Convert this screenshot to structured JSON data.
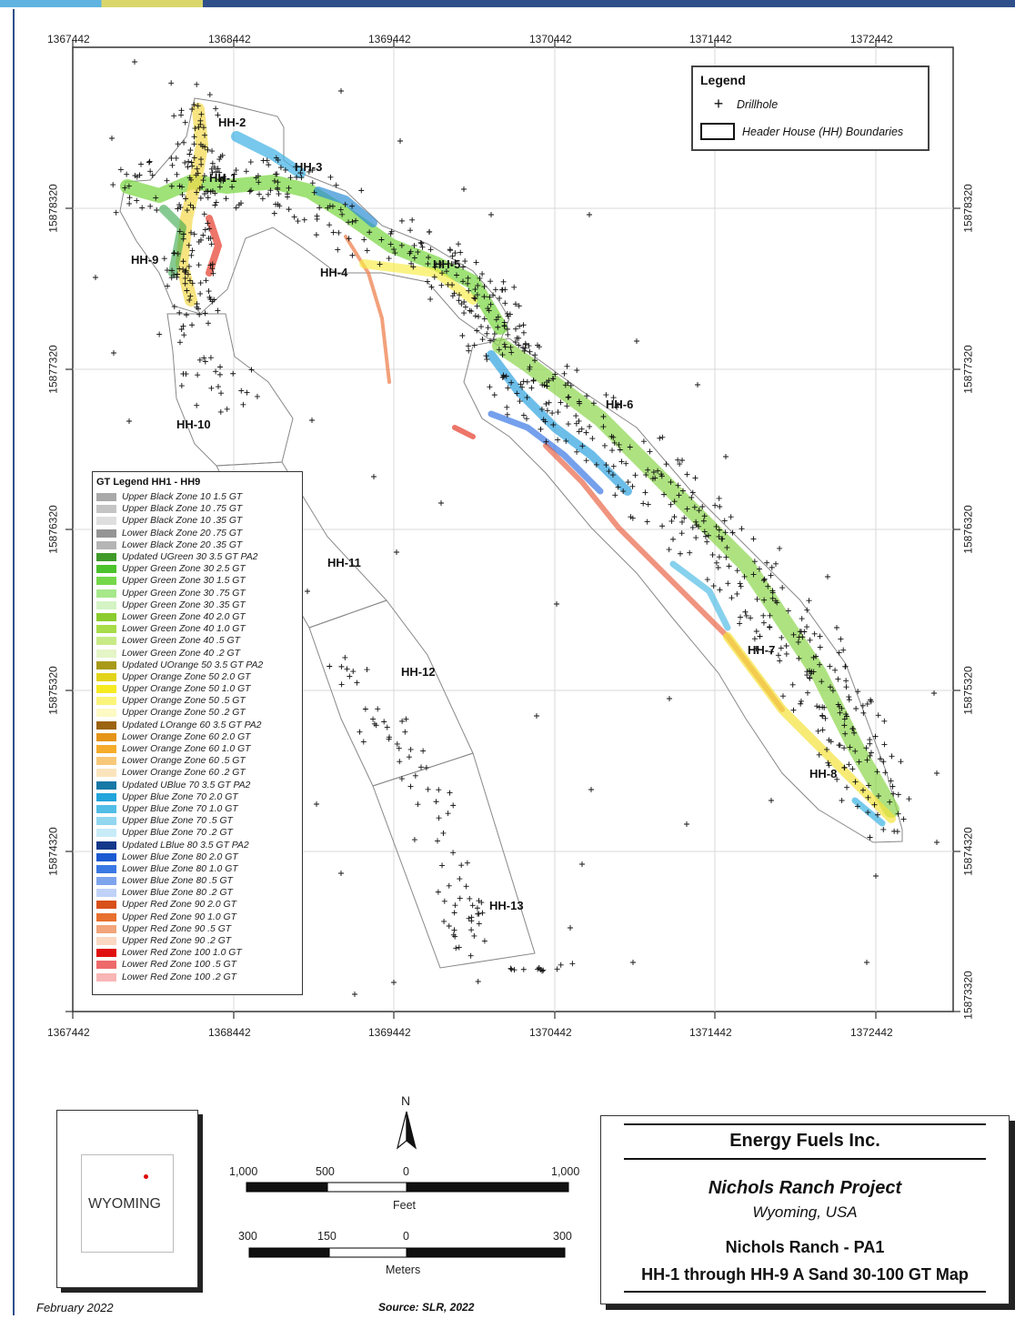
{
  "axis": {
    "x_ticks": [
      "1367442",
      "1368442",
      "1369442",
      "1370442",
      "1371442",
      "1372442"
    ],
    "y_ticks": [
      "15878320",
      "15877320",
      "15876320",
      "15875320",
      "15874320",
      "15873320"
    ]
  },
  "map_legend": {
    "title": "Legend",
    "drillhole_symbol": "+",
    "drillhole_label": "Drillhole",
    "boundary_label": "Header House (HH) Boundaries"
  },
  "gt_legend": {
    "title": "GT Legend HH1 - HH9",
    "items": [
      {
        "label": "Upper Black Zone 10 1.5 GT",
        "color": "#a9a9a9"
      },
      {
        "label": "Upper Black Zone 10 .75 GT",
        "color": "#c4c4c4"
      },
      {
        "label": "Upper Black Zone 10 .35 GT",
        "color": "#dedede"
      },
      {
        "label": "Lower Black Zone 20 .75 GT",
        "color": "#959595"
      },
      {
        "label": "Lower Black Zone 20 .35 GT",
        "color": "#b5b5b5"
      },
      {
        "label": "Updated UGreen 30 3.5 GT PA2",
        "color": "#3f9a2a"
      },
      {
        "label": "Upper Green Zone 30 2.5 GT",
        "color": "#4cc22c"
      },
      {
        "label": "Upper Green Zone 30 1.5 GT",
        "color": "#74d84a"
      },
      {
        "label": "Upper Green Zone 30 .75 GT",
        "color": "#a6e88a"
      },
      {
        "label": "Upper Green Zone 30 .35 GT",
        "color": "#d4f4c4"
      },
      {
        "label": "Lower Green Zone 40 2.0 GT",
        "color": "#8ccc2e"
      },
      {
        "label": "Lower Green Zone 40 1.0 GT",
        "color": "#a8dc48"
      },
      {
        "label": "Lower Green Zone 40 .5 GT",
        "color": "#c8ea86"
      },
      {
        "label": "Lower Green Zone 40 .2 GT",
        "color": "#e4f5c6"
      },
      {
        "label": "Updated UOrange 50 3.5 GT PA2",
        "color": "#a89a18"
      },
      {
        "label": "Upper Orange Zone 50 2.0 GT",
        "color": "#e2d41a"
      },
      {
        "label": "Upper Orange Zone 50 1.0 GT",
        "color": "#f6ea22"
      },
      {
        "label": "Upper Orange Zone 50 .5 GT",
        "color": "#fbf47a"
      },
      {
        "label": "Upper Orange Zone 50 .2 GT",
        "color": "#fdfac4"
      },
      {
        "label": "Updated LOrange 60 3.5 GT PA2",
        "color": "#9c6410"
      },
      {
        "label": "Lower Orange Zone 60 2.0 GT",
        "color": "#e59418"
      },
      {
        "label": "Lower Orange Zone 60 1.0 GT",
        "color": "#f5ac2a"
      },
      {
        "label": "Lower Orange Zone 60 .5 GT",
        "color": "#f8c878"
      },
      {
        "label": "Lower Orange Zone 60 .2 GT",
        "color": "#fbe4bc"
      },
      {
        "label": "Updated UBlue 70 3.5 GT PA2",
        "color": "#1878a6"
      },
      {
        "label": "Upper Blue Zone 70 2.0 GT",
        "color": "#22a4dc"
      },
      {
        "label": "Upper Blue Zone 70 1.0 GT",
        "color": "#52bde6"
      },
      {
        "label": "Upper Blue Zone 70 .5 GT",
        "color": "#92d6f0"
      },
      {
        "label": "Upper Blue Zone 70 .2 GT",
        "color": "#c8ebf8"
      },
      {
        "label": "Updated LBlue 80 3.5 GT PA2",
        "color": "#14388a"
      },
      {
        "label": "Lower Blue Zone 80 2.0 GT",
        "color": "#1c5ad2"
      },
      {
        "label": "Lower Blue Zone 80 1.0 GT",
        "color": "#3a78e4"
      },
      {
        "label": "Lower Blue Zone 80 .5 GT",
        "color": "#7ea4ee"
      },
      {
        "label": "Lower Blue Zone 80 .2 GT",
        "color": "#c0d2f8"
      },
      {
        "label": "Upper Red Zone 90 2.0 GT",
        "color": "#d8501a"
      },
      {
        "label": "Upper Red Zone 90 1.0 GT",
        "color": "#e8702e"
      },
      {
        "label": "Upper Red Zone 90 .5 GT",
        "color": "#f2a47a"
      },
      {
        "label": "Upper Red Zone 90 .2 GT",
        "color": "#fad8c2"
      },
      {
        "label": "Lower Red Zone 100 1.0 GT",
        "color": "#e01010"
      },
      {
        "label": "Lower Red Zone 100 .5 GT",
        "color": "#ee6a6a"
      },
      {
        "label": "Lower Red Zone 100 .2 GT",
        "color": "#f8b6b6"
      }
    ]
  },
  "header_houses": [
    "HH-1",
    "HH-2",
    "HH-3",
    "HH-4",
    "HH-5",
    "HH-6",
    "HH-7",
    "HH-8",
    "HH-9",
    "HH-10",
    "HH-11",
    "HH-12",
    "HH-13"
  ],
  "inset": {
    "state": "WYOMING"
  },
  "north_arrow": {
    "label": "N"
  },
  "scale_feet": {
    "labels": [
      "1,000",
      "500",
      "0",
      "1,000"
    ],
    "unit": "Feet"
  },
  "scale_meters": {
    "labels": [
      "300",
      "150",
      "0",
      "300"
    ],
    "unit": "Meters"
  },
  "title_block": {
    "company": "Energy Fuels Inc.",
    "project": "Nichols Ranch Project",
    "location": "Wyoming, USA",
    "map_title_1": "Nichols Ranch - PA1",
    "map_title_2": "HH-1 through HH-9 A Sand 30-100 GT Map"
  },
  "footer": {
    "date": "February 2022",
    "source": "Source: SLR, 2022"
  }
}
